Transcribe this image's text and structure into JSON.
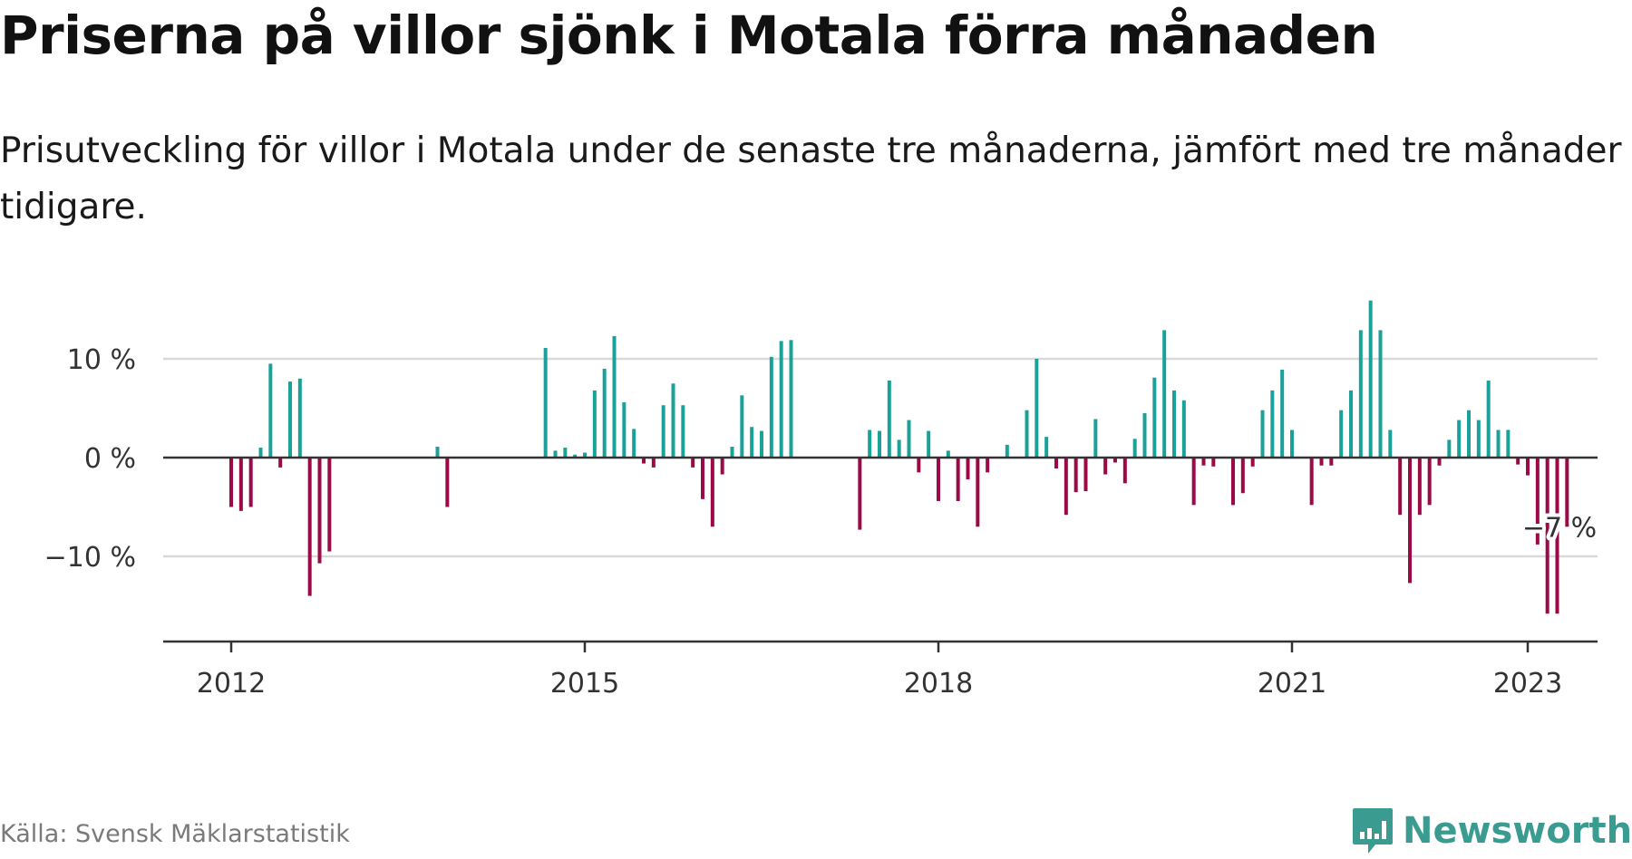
{
  "title": "Priserna på villor sjönk i Motala förra månaden",
  "subtitle": "Prisutveckling för villor i Motala under de senaste tre månaderna, jämfört med tre månader tidigare.",
  "source": "Källa: Svensk Mäklarstatistik",
  "logo": {
    "text": "Newsworthy",
    "icon": "bar-chart-speech-bubble-icon"
  },
  "colors": {
    "positive": "#1aa19a",
    "negative": "#9b0a46",
    "grid": "#d9d9d9",
    "axis": "#333333",
    "logo": "#3a9c91"
  },
  "chart_data": {
    "type": "bar",
    "title": "Priserna på villor sjönk i Motala förra månaden",
    "ylim": [
      -18,
      16
    ],
    "grid": true,
    "y_ticks": [
      {
        "value": 10,
        "label": "10 %"
      },
      {
        "value": 0,
        "label": "0 %"
      },
      {
        "value": -10,
        "label": "−10 %"
      }
    ],
    "x_ticks": [
      {
        "value": "2012-01",
        "label": "2012"
      },
      {
        "value": "2015-01",
        "label": "2015"
      },
      {
        "value": "2018-01",
        "label": "2018"
      },
      {
        "value": "2021-01",
        "label": "2021"
      },
      {
        "value": "2023-01",
        "label": "2023"
      }
    ],
    "annotation": {
      "x": "2023-01",
      "value": -7,
      "label": "−7 %"
    },
    "series": [
      {
        "values": [
          [
            "2012-01",
            -5
          ],
          [
            "2012-02",
            -5.4
          ],
          [
            "2012-03",
            -5
          ],
          [
            "2012-04",
            1
          ],
          [
            "2012-05",
            9.5
          ],
          [
            "2012-06",
            -1
          ],
          [
            "2012-07",
            7.7
          ],
          [
            "2012-08",
            8
          ],
          [
            "2012-09",
            -14
          ],
          [
            "2012-10",
            -10.7
          ],
          [
            "2012-11",
            -9.5
          ],
          [
            "2013-10",
            1.1
          ],
          [
            "2013-11",
            -5
          ],
          [
            "2014-09",
            11.1
          ],
          [
            "2014-10",
            0.7
          ],
          [
            "2014-11",
            1
          ],
          [
            "2014-12",
            0.3
          ],
          [
            "2015-01",
            0.5
          ],
          [
            "2015-02",
            6.8
          ],
          [
            "2015-03",
            9
          ],
          [
            "2015-04",
            12.3
          ],
          [
            "2015-05",
            5.6
          ],
          [
            "2015-06",
            2.9
          ],
          [
            "2015-07",
            -0.6
          ],
          [
            "2015-08",
            -1
          ],
          [
            "2015-09",
            5.3
          ],
          [
            "2015-10",
            7.5
          ],
          [
            "2015-11",
            5.3
          ],
          [
            "2015-12",
            -1
          ],
          [
            "2016-01",
            -4.2
          ],
          [
            "2016-02",
            -7
          ],
          [
            "2016-03",
            -1.7
          ],
          [
            "2016-04",
            1.1
          ],
          [
            "2016-05",
            6.3
          ],
          [
            "2016-06",
            3.1
          ],
          [
            "2016-07",
            2.7
          ],
          [
            "2016-08",
            10.2
          ],
          [
            "2016-09",
            11.8
          ],
          [
            "2016-10",
            11.9
          ],
          [
            "2017-05",
            -7.3
          ],
          [
            "2017-06",
            2.8
          ],
          [
            "2017-07",
            2.7
          ],
          [
            "2017-08",
            7.8
          ],
          [
            "2017-09",
            1.8
          ],
          [
            "2017-10",
            3.8
          ],
          [
            "2017-11",
            -1.5
          ],
          [
            "2017-12",
            2.7
          ],
          [
            "2018-01",
            -4.4
          ],
          [
            "2018-02",
            0.7
          ],
          [
            "2018-03",
            -4.4
          ],
          [
            "2018-04",
            -2.2
          ],
          [
            "2018-05",
            -7
          ],
          [
            "2018-06",
            -1.5
          ],
          [
            "2018-08",
            1.3
          ],
          [
            "2018-10",
            4.8
          ],
          [
            "2018-11",
            10
          ],
          [
            "2018-12",
            2.1
          ],
          [
            "2019-01",
            -1.1
          ],
          [
            "2019-02",
            -5.8
          ],
          [
            "2019-03",
            -3.5
          ],
          [
            "2019-04",
            -3.4
          ],
          [
            "2019-05",
            3.9
          ],
          [
            "2019-06",
            -1.7
          ],
          [
            "2019-07",
            -0.5
          ],
          [
            "2019-08",
            -2.6
          ],
          [
            "2019-09",
            1.9
          ],
          [
            "2019-10",
            4.5
          ],
          [
            "2019-11",
            8.1
          ],
          [
            "2019-12",
            12.9
          ],
          [
            "2020-01",
            6.8
          ],
          [
            "2020-02",
            5.8
          ],
          [
            "2020-03",
            -4.8
          ],
          [
            "2020-04",
            -0.8
          ],
          [
            "2020-05",
            -0.9
          ],
          [
            "2020-07",
            -4.8
          ],
          [
            "2020-08",
            -3.6
          ],
          [
            "2020-09",
            -0.9
          ],
          [
            "2020-10",
            4.8
          ],
          [
            "2020-11",
            6.8
          ],
          [
            "2020-12",
            8.9
          ],
          [
            "2021-01",
            2.8
          ],
          [
            "2021-03",
            -4.8
          ],
          [
            "2021-04",
            -0.8
          ],
          [
            "2021-05",
            -0.8
          ],
          [
            "2021-06",
            4.8
          ],
          [
            "2021-07",
            6.8
          ],
          [
            "2021-08",
            12.9
          ],
          [
            "2021-09",
            15.9
          ],
          [
            "2021-10",
            12.9
          ],
          [
            "2021-11",
            2.8
          ],
          [
            "2021-12",
            -5.8
          ],
          [
            "2022-01",
            -12.7
          ],
          [
            "2022-02",
            -5.8
          ],
          [
            "2022-03",
            -4.8
          ],
          [
            "2022-04",
            -0.8
          ],
          [
            "2022-05",
            1.8
          ],
          [
            "2022-06",
            3.8
          ],
          [
            "2022-07",
            4.8
          ],
          [
            "2022-08",
            3.8
          ],
          [
            "2022-09",
            7.8
          ],
          [
            "2022-10",
            2.8
          ],
          [
            "2022-11",
            2.8
          ],
          [
            "2022-12",
            -0.7
          ],
          [
            "2023-01",
            -1.8
          ],
          [
            "2023-02",
            -8.8
          ],
          [
            "2023-03",
            -15.8
          ],
          [
            "2023-04",
            -15.8
          ],
          [
            "2023-05",
            -7
          ]
        ]
      }
    ]
  }
}
